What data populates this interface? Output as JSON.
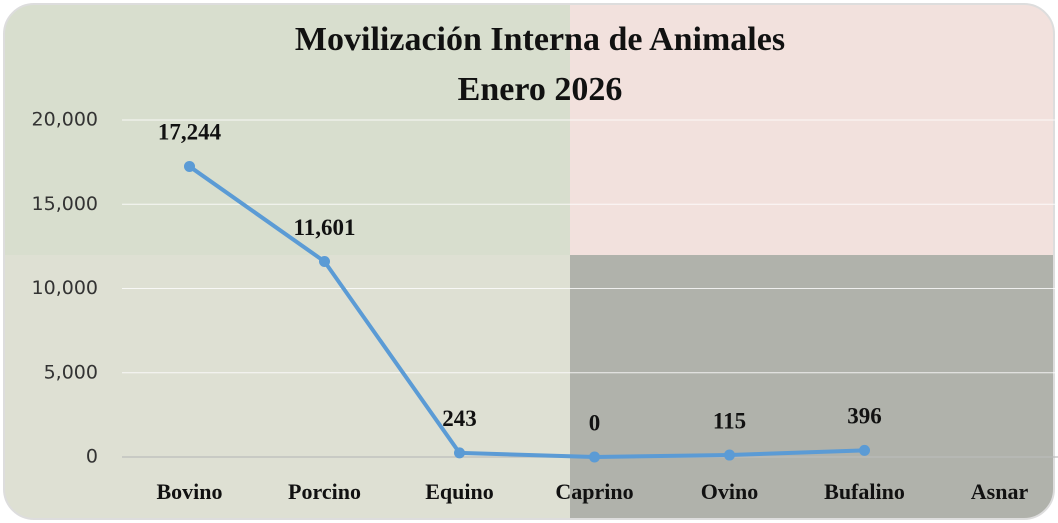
{
  "chart_data": {
    "type": "line",
    "title": "Movilización Interna de Animales",
    "subtitle": "Enero 2026",
    "categories": [
      "Bovino",
      "Porcino",
      "Equino",
      "Caprino",
      "Ovino",
      "Bufalino",
      "Asnar"
    ],
    "series": [
      {
        "color": "#5b9bd5",
        "values": [
          17244,
          11601,
          243,
          0,
          115,
          396,
          null
        ],
        "value_labels": [
          "17,244",
          "11,601",
          "243",
          "0",
          "115",
          "396",
          null
        ]
      }
    ],
    "ylim": [
      0,
      20000
    ],
    "yticks": [
      0,
      {
        "value": 5000,
        "label": "5,000"
      },
      {
        "value": 10000,
        "label": "10,000"
      },
      {
        "value": 15000,
        "label": "15,000"
      },
      {
        "value": 20000,
        "label": "20,000"
      }
    ],
    "grid": true
  }
}
